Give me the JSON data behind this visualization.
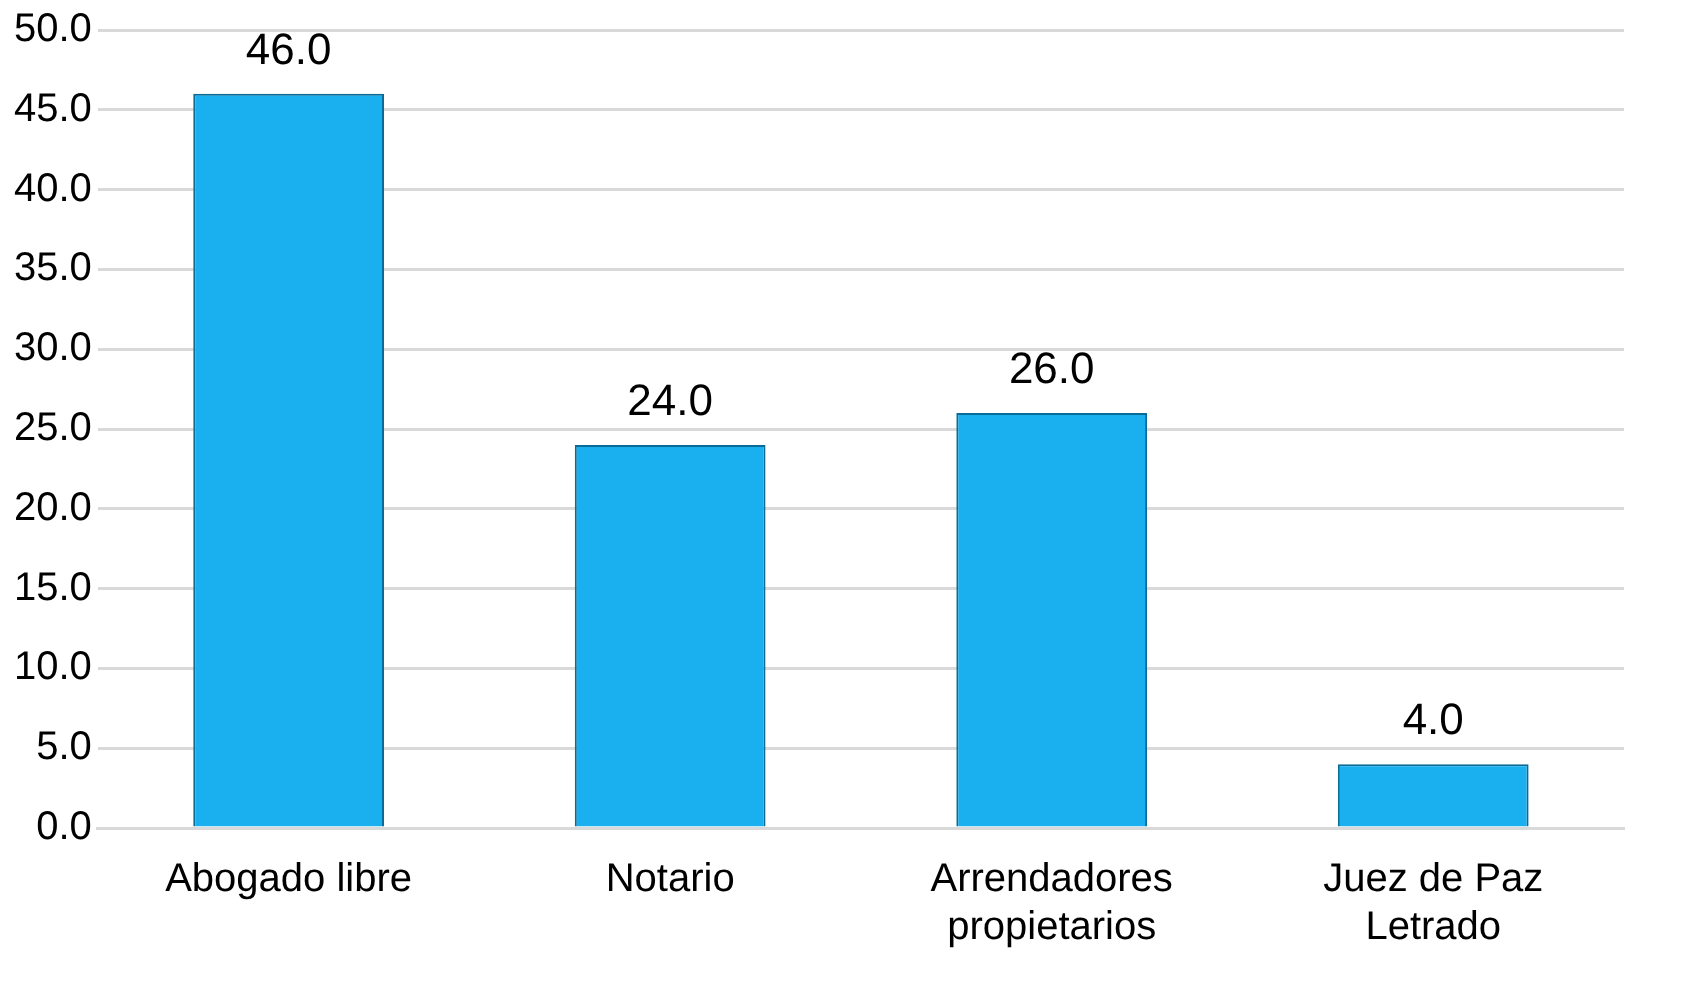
{
  "chart_data": {
    "type": "bar",
    "categories": [
      "Abogado libre",
      "Notario",
      "Arrendadores propietarios",
      "Juez de Paz Letrado"
    ],
    "values": [
      46.0,
      24.0,
      26.0,
      4.0
    ],
    "value_labels": [
      "46.0",
      "24.0",
      "26.0",
      "4.0"
    ],
    "color": "#1ab0f0",
    "ylim": [
      0,
      50
    ],
    "yticks": [
      {
        "value": 0,
        "label": "0.0"
      },
      {
        "value": 5,
        "label": "5.0"
      },
      {
        "value": 10,
        "label": "10.0"
      },
      {
        "value": 15,
        "label": "15.0"
      },
      {
        "value": 20,
        "label": "20.0"
      },
      {
        "value": 25,
        "label": "25.0"
      },
      {
        "value": 30,
        "label": "30.0"
      },
      {
        "value": 35,
        "label": "35.0"
      },
      {
        "value": 40,
        "label": "40.0"
      },
      {
        "value": 45,
        "label": "45.0"
      },
      {
        "value": 50,
        "label": "50.0"
      }
    ],
    "grid": "y",
    "legend": false
  }
}
